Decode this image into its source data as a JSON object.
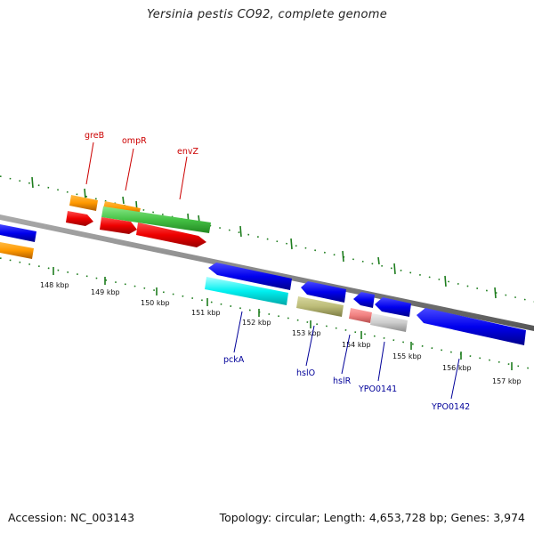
{
  "title": "Yersinia pestis CO92, complete genome",
  "footer": {
    "accession": "Accession: NC_003143",
    "summary": "Topology: circular; Length: 4,653,728 bp; Genes: 3,974"
  },
  "colors": {
    "backbone": "#888888",
    "ticks": "#1e7d1e",
    "label_forward": "#cc0000",
    "label_reverse": "#000099"
  },
  "scale_labels": [
    "148 kbp",
    "149 kbp",
    "150 kbp",
    "151 kbp",
    "152 kbp",
    "153 kbp",
    "154 kbp",
    "155 kbp",
    "156 kbp",
    "157 kbp"
  ],
  "gene_labels": {
    "greB": "greB",
    "ompR": "ompR",
    "envZ": "envZ",
    "pckA": "pckA",
    "hslO": "hslO",
    "hslR": "hslR",
    "YPO0141": "YPO0141",
    "YPO0142": "YPO0142"
  }
}
